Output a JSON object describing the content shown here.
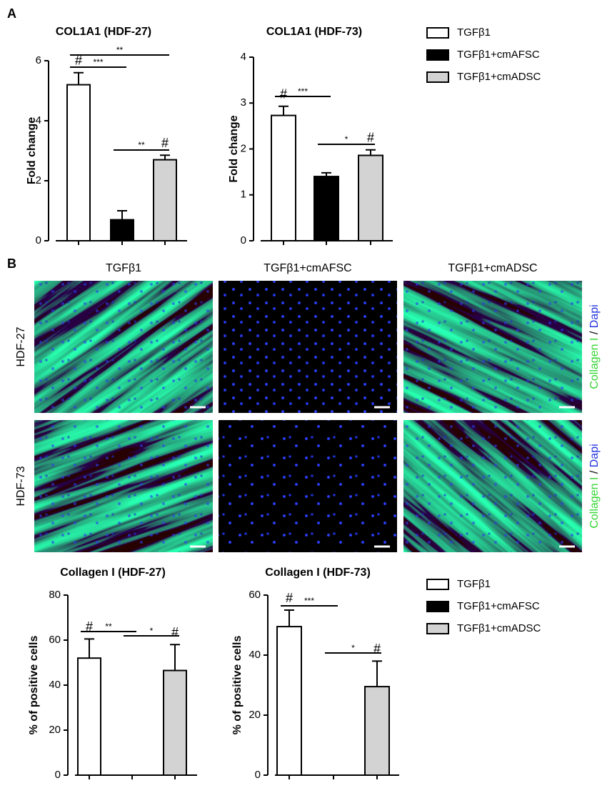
{
  "panel_labels": [
    "A",
    "B"
  ],
  "legends": [
    {
      "items": [
        {
          "name": "TGFβ1",
          "color": "#ffffff"
        },
        {
          "name": "TGFβ1+cmAFSC",
          "color": "#000000"
        },
        {
          "name": "TGFβ1+cmADSC",
          "color": "#d3d3d3"
        }
      ]
    },
    {
      "items": [
        {
          "name": "TGFβ1",
          "color": "#ffffff"
        },
        {
          "name": "TGFβ1+cmAFSC",
          "color": "#000000"
        },
        {
          "name": "TGFβ1+cmADSC",
          "color": "#d3d3d3"
        }
      ]
    }
  ],
  "images": {
    "columns": [
      "TGFβ1",
      "TGFβ1+cmAFSC",
      "TGFβ1+cmADSC"
    ],
    "rows": [
      "HDF-27",
      "HDF-73"
    ],
    "stain": {
      "collagen": "Collagen I",
      "separator": "/",
      "dapi": "Dapi"
    }
  },
  "chart_data": [
    {
      "type": "bar",
      "title": "COL1A1 (HDF-27)",
      "ylabel": "Fold change",
      "categories": [
        null,
        null,
        null
      ],
      "values": [
        5.2,
        0.7,
        2.7
      ],
      "errors": [
        0.4,
        0.3,
        0.15
      ],
      "colors": [
        "#ffffff",
        "#000000",
        "#d3d3d3"
      ],
      "markers": [
        "#",
        null,
        "#"
      ],
      "brackets": [
        {
          "label": "***",
          "bars": [
            0,
            1
          ]
        },
        {
          "label": "**",
          "bars": [
            0,
            2
          ]
        },
        {
          "label": "**",
          "bars": [
            1,
            2
          ]
        }
      ],
      "ylim": [
        0,
        6
      ],
      "yticks": [
        0,
        2,
        4,
        6
      ]
    },
    {
      "type": "bar",
      "title": "COL1A1 (HDF-73)",
      "ylabel": "Fold change",
      "categories": [
        null,
        null,
        null
      ],
      "values": [
        2.73,
        1.4,
        1.86
      ],
      "errors": [
        0.2,
        0.08,
        0.12
      ],
      "colors": [
        "#ffffff",
        "#000000",
        "#d3d3d3"
      ],
      "markers": [
        "#",
        null,
        "#"
      ],
      "brackets": [
        {
          "label": "***",
          "bars": [
            0,
            1
          ]
        },
        {
          "label": "*",
          "bars": [
            1,
            2
          ]
        }
      ],
      "ylim": [
        0,
        4
      ],
      "yticks": [
        0,
        1,
        2,
        3,
        4
      ]
    },
    {
      "type": "bar",
      "title": "Collagen  I (HDF-27)",
      "ylabel": "% of positive cells",
      "categories": [
        null,
        null,
        null
      ],
      "values": [
        52,
        0,
        46.5
      ],
      "errors": [
        8.5,
        0,
        11.5
      ],
      "colors": [
        "#ffffff",
        "#000000",
        "#d3d3d3"
      ],
      "markers": [
        "#",
        null,
        "#"
      ],
      "brackets": [
        {
          "label": "**",
          "bars": [
            0,
            1
          ]
        },
        {
          "label": "*",
          "bars": [
            1,
            2
          ]
        }
      ],
      "ylim": [
        0,
        80
      ],
      "yticks": [
        0,
        20,
        40,
        60,
        80
      ]
    },
    {
      "type": "bar",
      "title": "Collagen I (HDF-73)",
      "ylabel": "% of positive cells",
      "categories": [
        null,
        null,
        null
      ],
      "values": [
        49.5,
        0,
        29.5
      ],
      "errors": [
        5.5,
        0,
        8.5
      ],
      "colors": [
        "#ffffff",
        "#000000",
        "#d3d3d3"
      ],
      "markers": [
        "#",
        null,
        "#"
      ],
      "brackets": [
        {
          "label": "***",
          "bars": [
            0,
            1
          ]
        },
        {
          "label": "*",
          "bars": [
            1,
            2
          ]
        }
      ],
      "ylim": [
        0,
        60
      ],
      "yticks": [
        0,
        20,
        40,
        60
      ]
    }
  ]
}
